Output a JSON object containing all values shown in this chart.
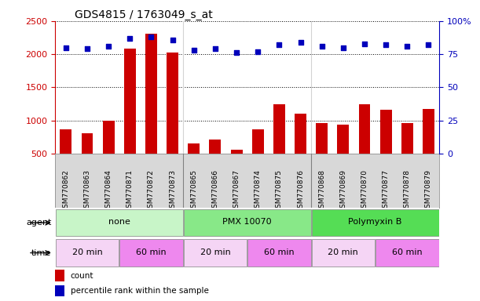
{
  "title": "GDS4815 / 1763049_s_at",
  "samples": [
    "GSM770862",
    "GSM770863",
    "GSM770864",
    "GSM770871",
    "GSM770872",
    "GSM770873",
    "GSM770865",
    "GSM770866",
    "GSM770867",
    "GSM770874",
    "GSM770875",
    "GSM770876",
    "GSM770868",
    "GSM770869",
    "GSM770870",
    "GSM770877",
    "GSM770878",
    "GSM770879"
  ],
  "counts": [
    870,
    800,
    1000,
    2090,
    2310,
    2020,
    650,
    710,
    560,
    860,
    1240,
    1100,
    960,
    940,
    1240,
    1160,
    960,
    1170
  ],
  "percentile": [
    80,
    79,
    81,
    87,
    88,
    86,
    78,
    79,
    76,
    77,
    82,
    84,
    81,
    80,
    83,
    82,
    81,
    82
  ],
  "agents": [
    {
      "label": "none",
      "start": 0,
      "end": 6,
      "color": "#c8f5c8"
    },
    {
      "label": "PMX 10070",
      "start": 6,
      "end": 12,
      "color": "#88e888"
    },
    {
      "label": "Polymyxin B",
      "start": 12,
      "end": 18,
      "color": "#55dd55"
    }
  ],
  "times": [
    {
      "label": "20 min",
      "start": 0,
      "end": 3,
      "color": "#f5d5f5"
    },
    {
      "label": "60 min",
      "start": 3,
      "end": 6,
      "color": "#ee88ee"
    },
    {
      "label": "20 min",
      "start": 6,
      "end": 9,
      "color": "#f5d5f5"
    },
    {
      "label": "60 min",
      "start": 9,
      "end": 12,
      "color": "#ee88ee"
    },
    {
      "label": "20 min",
      "start": 12,
      "end": 15,
      "color": "#f5d5f5"
    },
    {
      "label": "60 min",
      "start": 15,
      "end": 18,
      "color": "#ee88ee"
    }
  ],
  "ylim_left": [
    500,
    2500
  ],
  "ylim_right": [
    0,
    100
  ],
  "yticks_left": [
    500,
    1000,
    1500,
    2000,
    2500
  ],
  "yticks_right": [
    0,
    25,
    50,
    75,
    100
  ],
  "ytick_labels_right": [
    "0",
    "25",
    "50",
    "75",
    "100%"
  ],
  "bar_color": "#cc0000",
  "dot_color": "#0000bb",
  "xtick_bg": "#d8d8d8",
  "title_fontsize": 10,
  "legend_count_color": "#cc0000",
  "legend_dot_color": "#0000bb"
}
